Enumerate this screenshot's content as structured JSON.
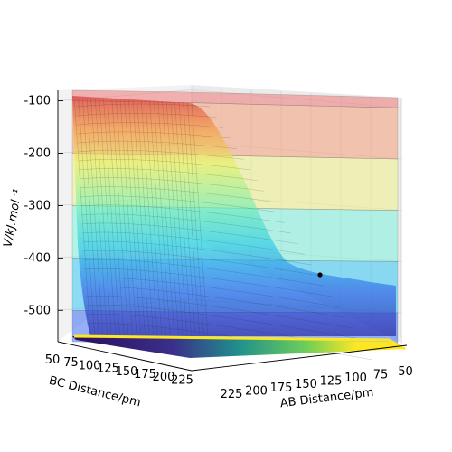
{
  "chart_data": {
    "type": "surface3d",
    "title": "",
    "zlabel": "V/kJ.mol⁻¹",
    "xlabel": "AB Distance/pm",
    "ylabel": "BC Distance/pm",
    "z_ticks": [
      "-100",
      "-200",
      "-300",
      "-400",
      "-500"
    ],
    "z_tick_values": [
      -100,
      -200,
      -300,
      -400,
      -500
    ],
    "x_ticks": [
      "225",
      "200",
      "175",
      "150",
      "125",
      "100",
      "75",
      "50"
    ],
    "y_ticks": [
      "50",
      "75",
      "100",
      "125",
      "150",
      "175",
      "200",
      "225"
    ],
    "zlim": [
      -560,
      -80
    ],
    "xlim": [
      50,
      230
    ],
    "ylim": [
      50,
      230
    ],
    "grid": true,
    "colormap": "jet",
    "contour_colormap": "viridis",
    "contour_bands": [
      {
        "z_from": -560,
        "z_to": -500,
        "color": "#3d6cf0"
      },
      {
        "z_from": -500,
        "z_to": -400,
        "color": "#39c8f5"
      },
      {
        "z_from": -400,
        "z_to": -300,
        "color": "#7ff2dc"
      },
      {
        "z_from": -300,
        "z_to": -200,
        "color": "#eef28a"
      },
      {
        "z_from": -200,
        "z_to": -100,
        "color": "#f6a07a"
      },
      {
        "z_from": -100,
        "z_to": -80,
        "color": "#f07a7a"
      }
    ],
    "surface_description_values": {
      "plateau_z": -95,
      "well_z": -465,
      "saddle_z": -300
    },
    "trajectory_point": {
      "ab": 90,
      "bc": 200,
      "z": -445
    }
  }
}
